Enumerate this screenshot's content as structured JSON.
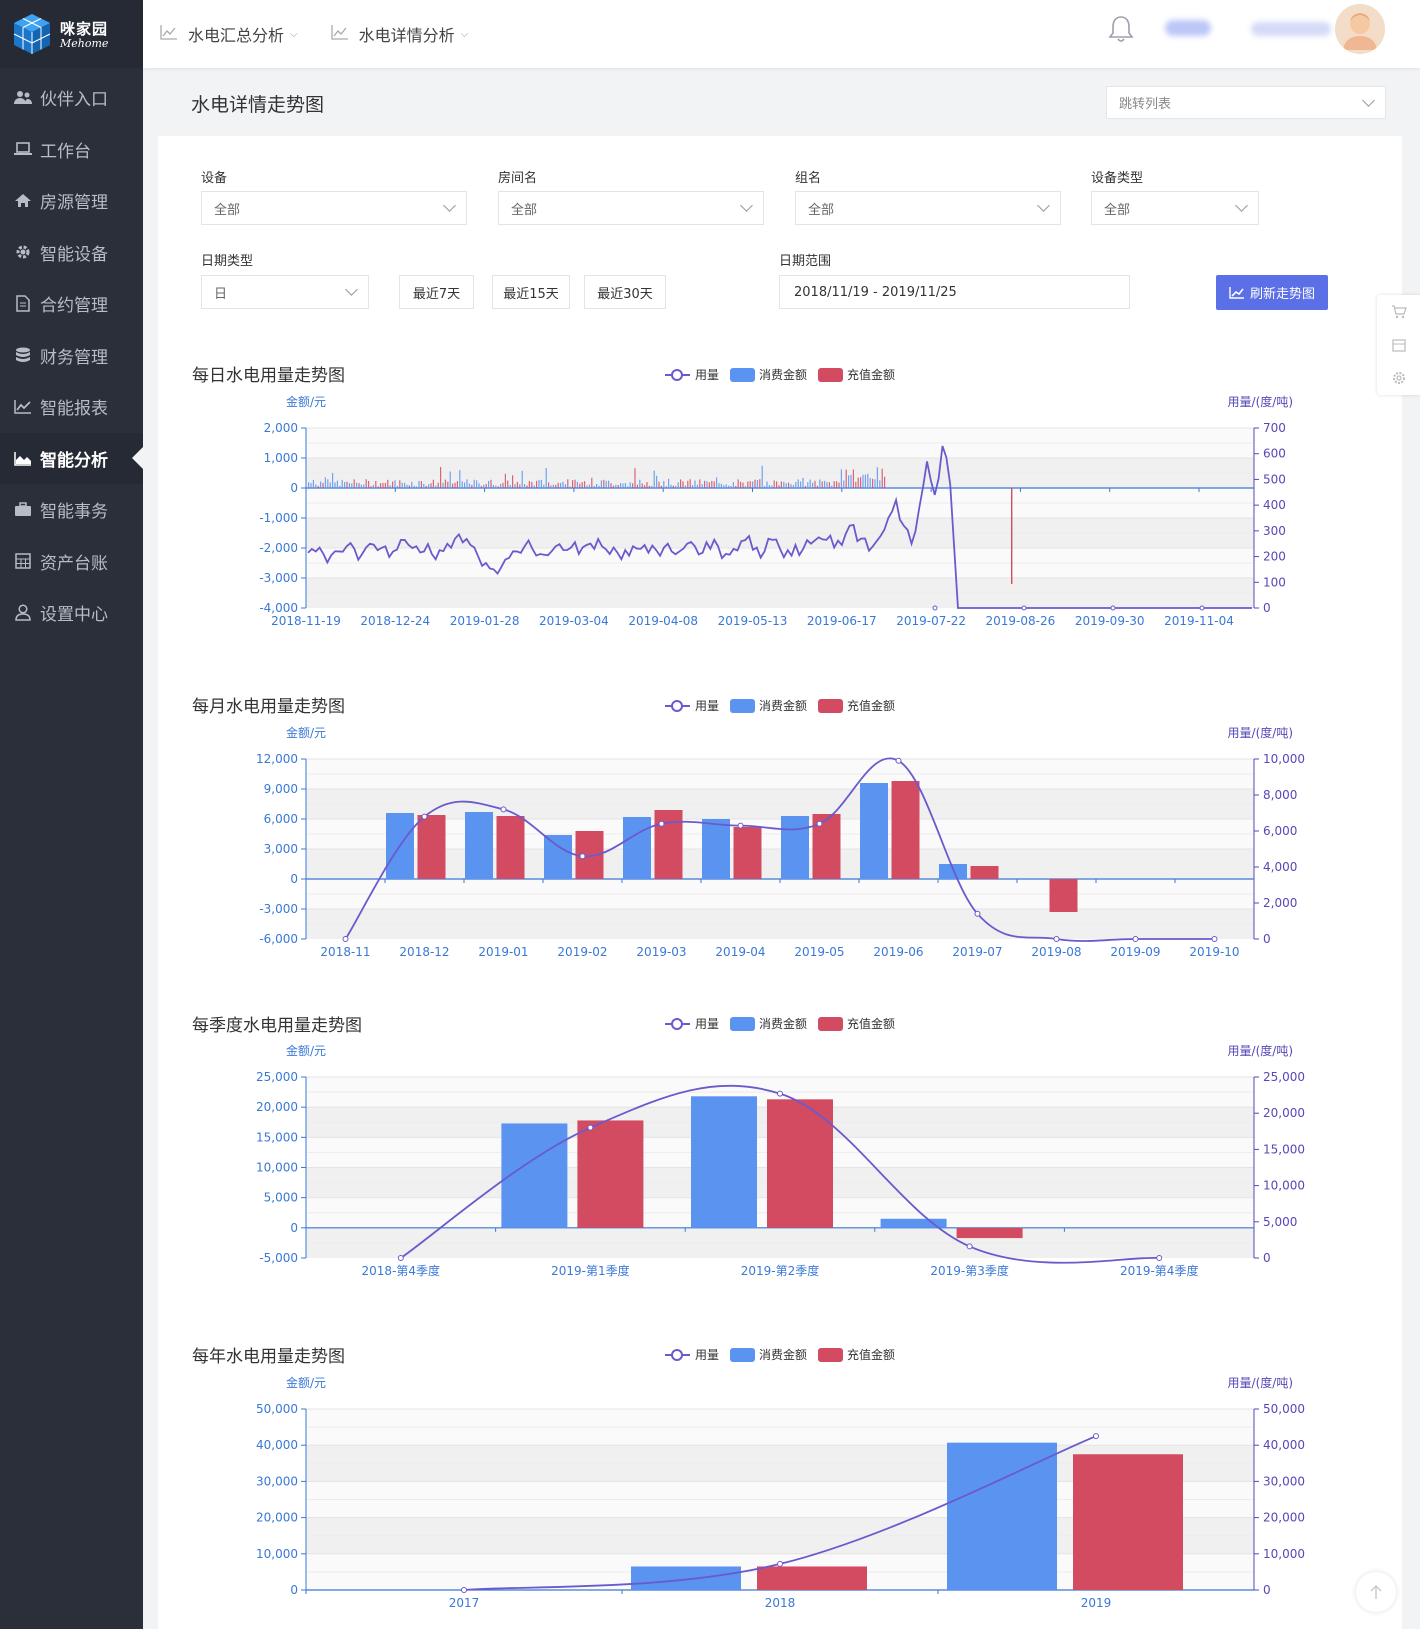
{
  "logo": {
    "cn": "咪家园",
    "en": "Mehome"
  },
  "sidebar": {
    "items": [
      {
        "label": "伙伴入口",
        "icon": "users-icon"
      },
      {
        "label": "工作台",
        "icon": "laptop-icon"
      },
      {
        "label": "房源管理",
        "icon": "home-icon"
      },
      {
        "label": "智能设备",
        "icon": "gear-icon"
      },
      {
        "label": "合约管理",
        "icon": "document-icon"
      },
      {
        "label": "财务管理",
        "icon": "database-icon"
      },
      {
        "label": "智能报表",
        "icon": "line-chart-icon"
      },
      {
        "label": "智能分析",
        "icon": "area-chart-icon",
        "active": true
      },
      {
        "label": "智能事务",
        "icon": "briefcase-icon"
      },
      {
        "label": "资产台账",
        "icon": "calculator-icon"
      },
      {
        "label": "设置中心",
        "icon": "user-icon"
      }
    ]
  },
  "header": {
    "menus": [
      {
        "label": "水电汇总分析",
        "icon": "chart-icon"
      },
      {
        "label": "水电详情分析",
        "icon": "chart-icon"
      }
    ]
  },
  "page": {
    "title": "水电详情走势图",
    "jump_placeholder": "跳转列表"
  },
  "filters": {
    "device": {
      "label": "设备",
      "value": "全部"
    },
    "room": {
      "label": "房间名",
      "value": "全部"
    },
    "group": {
      "label": "组名",
      "value": "全部"
    },
    "device_type": {
      "label": "设备类型",
      "value": "全部"
    },
    "date_type": {
      "label": "日期类型",
      "value": "日"
    },
    "quick": [
      "最近7天",
      "最近15天",
      "最近30天"
    ],
    "date_range": {
      "label": "日期范围",
      "value": "2018/11/19 - 2019/11/25"
    },
    "refresh_label": "刷新走势图"
  },
  "legend": {
    "usage": "用量",
    "consume": "消费金额",
    "recharge": "充值金额"
  },
  "colors": {
    "usage": "#6a5acd",
    "consume": "#5b93f0",
    "recharge": "#d34b61",
    "axis_left": "#3a78d8",
    "axis_right": "#5548b8",
    "accent": "#5b6fe6"
  },
  "chart_data": [
    {
      "type": "bar",
      "title": "每日水电用量走势图",
      "ylabel_left": "金额/元",
      "ylabel_right": "用量/(度/吨)",
      "left_ticks": [
        "2,000",
        "1,000",
        "0",
        "-1,000",
        "-2,000",
        "-3,000",
        "-4,000"
      ],
      "right_ticks": [
        "700",
        "600",
        "500",
        "400",
        "300",
        "200",
        "100",
        "0"
      ],
      "x_labels": [
        "2018-11-19",
        "2018-12-24",
        "2019-01-28",
        "2019-03-04",
        "2019-04-08",
        "2019-05-13",
        "2019-06-17",
        "2019-07-22",
        "2019-08-26",
        "2019-09-30",
        "2019-11-04"
      ],
      "ylim_left": [
        -4000,
        2000
      ],
      "ylim_right": [
        0,
        700
      ],
      "usage_samples": [
        215,
        220,
        210,
        205,
        220,
        240,
        230,
        210,
        250,
        225,
        240,
        220,
        265,
        245,
        240,
        220,
        210,
        225,
        250,
        270,
        255,
        245,
        200,
        175,
        150,
        160,
        195,
        220,
        240,
        230,
        210,
        205,
        240,
        225,
        235,
        210,
        245,
        230,
        240,
        210,
        215,
        225,
        240,
        230,
        215,
        225,
        235,
        220,
        220,
        250,
        240,
        215,
        230,
        240,
        210,
        230,
        260,
        280,
        235,
        220,
        265,
        230,
        225,
        245,
        230,
        250,
        275,
        265,
        235,
        245,
        320,
        260,
        270,
        240,
        280,
        350,
        420,
        320,
        250,
        390,
        570,
        440,
        630,
        480,
        0,
        0,
        0,
        0,
        0,
        0,
        0,
        0,
        0,
        0,
        0,
        0,
        0,
        0,
        0,
        0,
        0,
        0,
        0,
        0,
        0,
        0,
        0,
        0,
        0,
        0,
        0,
        0,
        0,
        0,
        0,
        0,
        0,
        0,
        0,
        0,
        0,
        0,
        0
      ],
      "recharge_spike": {
        "date": "2019-08-19",
        "value": -3200
      }
    },
    {
      "type": "bar",
      "title": "每月水电用量走势图",
      "ylabel_left": "金额/元",
      "ylabel_right": "用量/(度/吨)",
      "left_ticks": [
        "12,000",
        "9,000",
        "6,000",
        "3,000",
        "0",
        "-3,000",
        "-6,000"
      ],
      "right_ticks": [
        "10,000",
        "8,000",
        "6,000",
        "4,000",
        "2,000",
        "0"
      ],
      "categories": [
        "2018-11",
        "2018-12",
        "2019-01",
        "2019-02",
        "2019-03",
        "2019-04",
        "2019-05",
        "2019-06",
        "2019-07",
        "2019-08",
        "2019-09",
        "2019-10"
      ],
      "ylim_left": [
        -6000,
        12000
      ],
      "ylim_right": [
        0,
        10000
      ],
      "series": [
        {
          "name": "消费金额",
          "values": [
            0,
            6600,
            6700,
            4400,
            6200,
            6000,
            6300,
            9600,
            1500,
            0,
            0,
            0
          ]
        },
        {
          "name": "充值金额",
          "values": [
            0,
            6400,
            6300,
            4800,
            6900,
            5200,
            6500,
            9800,
            1300,
            -3300,
            0,
            0
          ]
        },
        {
          "name": "用量",
          "values": [
            0,
            6800,
            7200,
            4600,
            6400,
            6300,
            6400,
            9900,
            1400,
            0,
            0,
            0
          ]
        }
      ]
    },
    {
      "type": "bar",
      "title": "每季度水电用量走势图",
      "ylabel_left": "金额/元",
      "ylabel_right": "用量/(度/吨)",
      "left_ticks": [
        "25,000",
        "20,000",
        "15,000",
        "10,000",
        "5,000",
        "0",
        "-5,000"
      ],
      "right_ticks": [
        "25,000",
        "20,000",
        "15,000",
        "10,000",
        "5,000",
        "0"
      ],
      "categories": [
        "2018-第4季度",
        "2019-第1季度",
        "2019-第2季度",
        "2019-第3季度",
        "2019-第4季度"
      ],
      "ylim_left": [
        -5000,
        25000
      ],
      "ylim_right": [
        0,
        25000
      ],
      "series": [
        {
          "name": "消费金额",
          "values": [
            0,
            17300,
            21800,
            1500,
            0
          ]
        },
        {
          "name": "充值金额",
          "values": [
            0,
            17800,
            21300,
            -1700,
            0
          ]
        },
        {
          "name": "用量",
          "values": [
            0,
            18000,
            22700,
            1600,
            0
          ]
        }
      ]
    },
    {
      "type": "bar",
      "title": "每年水电用量走势图",
      "ylabel_left": "金额/元",
      "ylabel_right": "用量/(度/吨)",
      "left_ticks": [
        "50,000",
        "40,000",
        "30,000",
        "20,000",
        "10,000",
        "0"
      ],
      "right_ticks": [
        "50,000",
        "40,000",
        "30,000",
        "20,000",
        "10,000",
        "0"
      ],
      "categories": [
        "2017",
        "2018",
        "2019"
      ],
      "ylim_left": [
        0,
        50000
      ],
      "ylim_right": [
        0,
        50000
      ],
      "series": [
        {
          "name": "消费金额",
          "values": [
            0,
            6500,
            40700
          ]
        },
        {
          "name": "充值金额",
          "values": [
            0,
            6500,
            37500
          ]
        },
        {
          "name": "用量",
          "values": [
            0,
            7200,
            42500
          ]
        }
      ]
    }
  ]
}
